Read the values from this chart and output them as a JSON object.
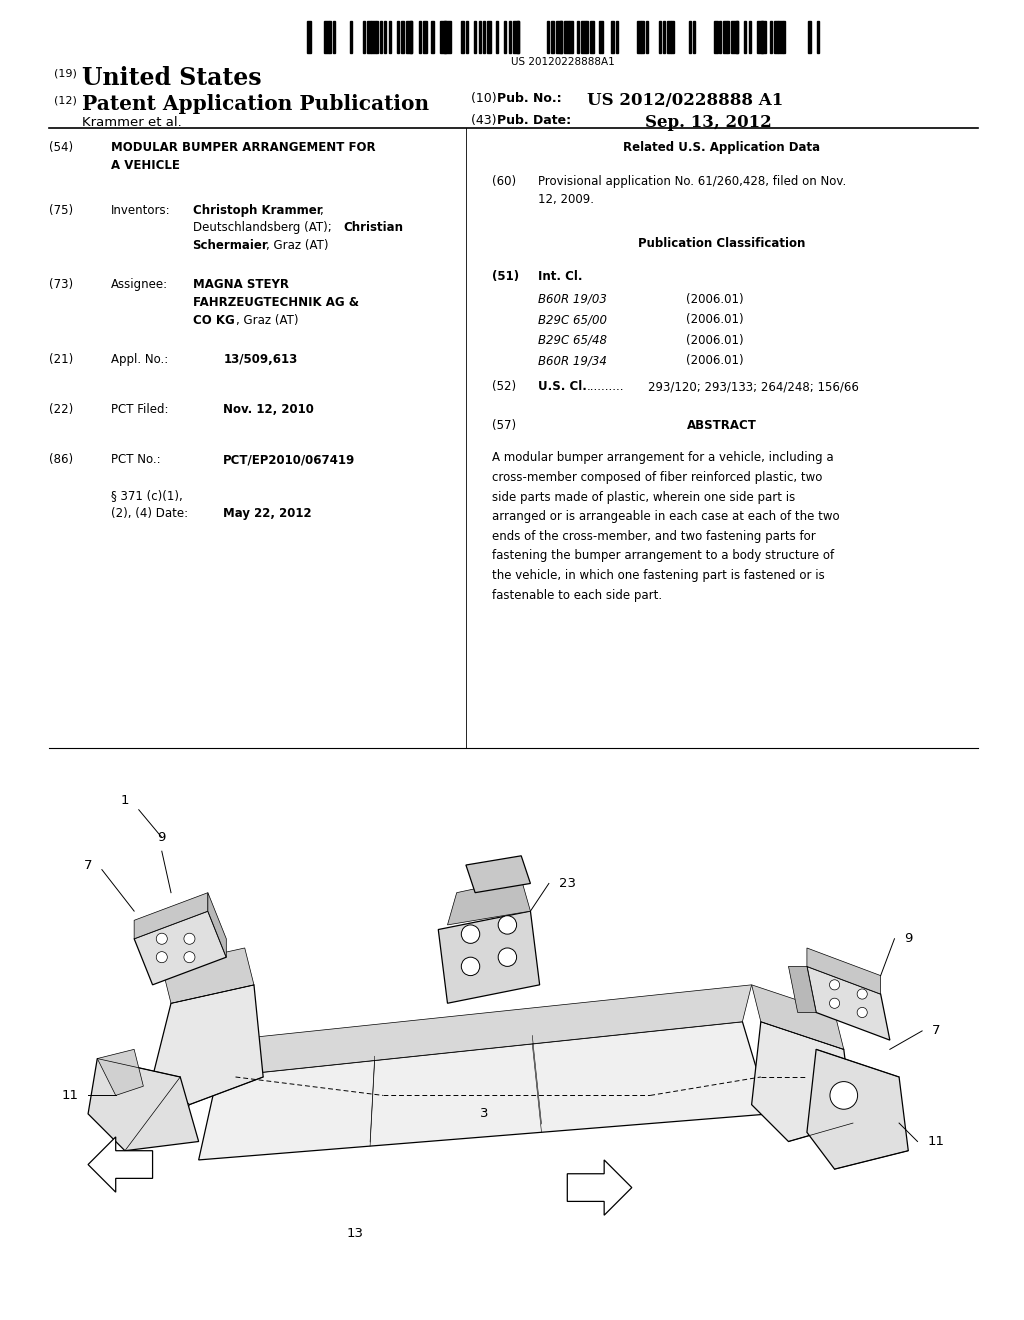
{
  "background_color": "#ffffff",
  "page_width": 10.24,
  "page_height": 13.2,
  "barcode_text": "US 20120228888A1",
  "patent_number_label": "(19)",
  "patent_country": "United States",
  "pub_type_label": "(12)",
  "pub_type": "Patent Application Publication",
  "inventors_name": "Krammer et al.",
  "pub_no_label": "(10) Pub. No.:",
  "pub_no": "US 2012/0228888 A1",
  "pub_date_label": "(43) Pub. Date:",
  "pub_date": "Sep. 13, 2012",
  "field54_label": "(54)",
  "field75_label": "(75)",
  "field75_key": "Inventors:",
  "field73_label": "(73)",
  "field73_key": "Assignee:",
  "field21_label": "(21)",
  "field21_key": "Appl. No.:",
  "field21_value": "13/509,613",
  "field22_label": "(22)",
  "field22_key": "PCT Filed:",
  "field22_value": "Nov. 12, 2010",
  "field86_label": "(86)",
  "field86_key": "PCT No.:",
  "field86_value": "PCT/EP2010/067419",
  "field86b_value": "May 22, 2012",
  "related_title": "Related U.S. Application Data",
  "field60_label": "(60)",
  "field60_value": "Provisional application No. 61/260,428, filed on Nov.\n12, 2009.",
  "pub_class_title": "Publication Classification",
  "field51_label": "(51)",
  "field51_key": "Int. Cl.",
  "int_cl_entries": [
    [
      "B60R 19/03",
      "(2006.01)"
    ],
    [
      "B29C 65/00",
      "(2006.01)"
    ],
    [
      "B29C 65/48",
      "(2006.01)"
    ],
    [
      "B60R 19/34",
      "(2006.01)"
    ]
  ],
  "field52_label": "(52)",
  "field52_key": "U.S. Cl.",
  "field52_dots": "..........",
  "field52_value": "293/120; 293/133; 264/248; 156/66",
  "field57_label": "(57)",
  "field57_key": "ABSTRACT",
  "abstract_text": "A modular bumper arrangement for a vehicle, including a cross-member composed of fiber reinforced plastic, two side parts made of plastic, wherein one side part is arranged or is arrangeable in each case at each of the two ends of the cross-member, and two fastening parts for fastening the bumper arrangement to a body structure of the vehicle, in which one fastening part is fastened or is fastenable to each side part.",
  "lm": 0.048,
  "rm": 0.955,
  "col_split": 0.455
}
